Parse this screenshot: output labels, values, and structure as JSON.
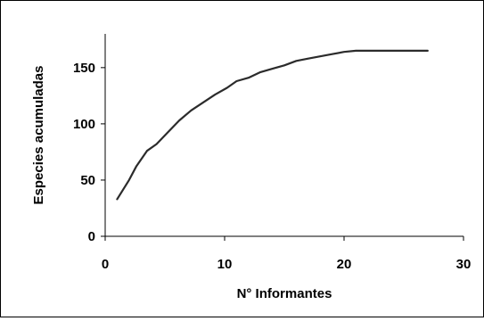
{
  "chart_data": {
    "type": "line",
    "title": "",
    "xlabel": "N° Informantes",
    "ylabel": "Especies acumuladas",
    "xlim": [
      0,
      30
    ],
    "ylim": [
      0,
      180
    ],
    "x_ticks": [
      0,
      10,
      20,
      30
    ],
    "y_ticks": [
      0,
      50,
      100,
      150
    ],
    "grid": false,
    "legend": "none",
    "series": [
      {
        "color": "#2b2b2b",
        "points": [
          [
            1,
            33
          ],
          [
            2,
            50
          ],
          [
            2.6,
            62
          ],
          [
            3.5,
            76
          ],
          [
            4.3,
            82
          ],
          [
            5.2,
            92
          ],
          [
            6.2,
            103
          ],
          [
            7.2,
            112
          ],
          [
            8.2,
            119
          ],
          [
            9.2,
            126
          ],
          [
            10.2,
            132
          ],
          [
            11,
            138
          ],
          [
            12,
            141
          ],
          [
            13,
            146
          ],
          [
            14,
            149
          ],
          [
            15,
            152
          ],
          [
            16,
            156
          ],
          [
            17,
            158
          ],
          [
            18,
            160
          ],
          [
            19,
            162
          ],
          [
            20,
            164
          ],
          [
            21,
            165
          ],
          [
            22,
            165
          ],
          [
            23,
            165
          ],
          [
            24,
            165
          ],
          [
            25,
            165
          ],
          [
            26,
            165
          ],
          [
            27,
            165
          ]
        ]
      }
    ]
  }
}
